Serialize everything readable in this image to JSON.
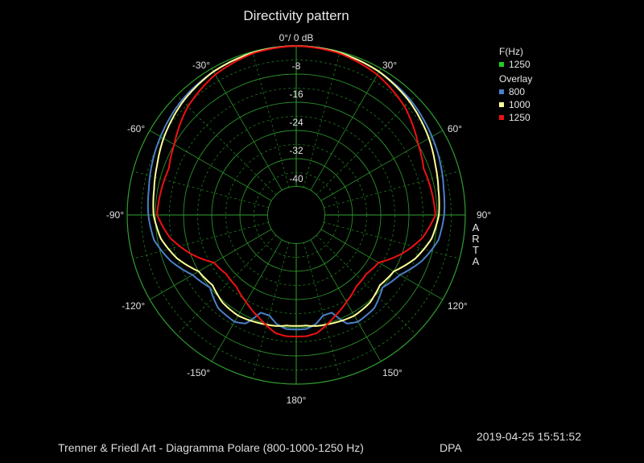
{
  "title": "Directivity pattern",
  "legend": {
    "freq_header": "F(Hz)",
    "freq_items": [
      {
        "label": "1250",
        "color": "#22cc22"
      }
    ],
    "overlay_header": "Overlay",
    "overlay_items": [
      {
        "label": "800",
        "color": "#4a7fc8"
      },
      {
        "label": "1000",
        "color": "#ffff99"
      },
      {
        "label": "1250",
        "color": "#ee1111"
      }
    ]
  },
  "side_label": "ARTA",
  "footer": "Trenner & Friedl Art - Diagramma Polare (800-1000-1250 Hz)",
  "brand": "DPA",
  "timestamp": "2019-04-25  15:51:52",
  "chart_data": {
    "type": "polar",
    "title": "Directivity pattern",
    "radial_unit": "dB",
    "radial_range": [
      -48,
      0
    ],
    "radial_ticks": [
      0,
      -8,
      -16,
      -24,
      -32,
      -40
    ],
    "radial_tick_labels": [
      "0°/ 0 dB",
      "-8",
      "-16",
      "-24",
      "-32",
      "-40"
    ],
    "angle_ticks": [
      0,
      30,
      60,
      90,
      120,
      150,
      180,
      -150,
      -120,
      -90,
      -60,
      -30
    ],
    "angle_tick_labels": [
      "0°/ 0 dB",
      "30°",
      "60°",
      "90°",
      "120°",
      "150°",
      "180°",
      "-150°",
      "-120°",
      "-90°",
      "-60°",
      "-30°"
    ],
    "grid": true,
    "legend_position": "top-right",
    "series": [
      {
        "name": "800",
        "color": "#4a7fc8",
        "angles": [
          0,
          15,
          30,
          45,
          60,
          70,
          80,
          90,
          100,
          110,
          120,
          130,
          140,
          150,
          155,
          160,
          165,
          170,
          175,
          180
        ],
        "values": [
          0,
          -0.3,
          -1,
          -2,
          -3.5,
          -4.5,
          -5.5,
          -6,
          -7,
          -10,
          -14,
          -16,
          -13.5,
          -13,
          -14,
          -18.5,
          -18.5,
          -16.5,
          -15.5,
          -15.5
        ]
      },
      {
        "name": "1000",
        "color": "#ffff99",
        "angles": [
          0,
          15,
          30,
          45,
          60,
          70,
          80,
          90,
          100,
          110,
          120,
          130,
          140,
          150,
          160,
          170,
          175,
          180
        ],
        "values": [
          0,
          -0.3,
          -1,
          -2.5,
          -4.5,
          -6,
          -7,
          -7.5,
          -9,
          -12,
          -16,
          -17,
          -15.5,
          -15,
          -15.5,
          -16,
          -16.5,
          -16.5
        ]
      },
      {
        "name": "1250",
        "color": "#ee1111",
        "angles": [
          0,
          15,
          30,
          45,
          60,
          70,
          80,
          90,
          100,
          110,
          120,
          130,
          140,
          150,
          160,
          170,
          175,
          180
        ],
        "values": [
          0,
          -0.5,
          -2,
          -4.5,
          -8,
          -9.5,
          -9,
          -8.5,
          -11.5,
          -16,
          -21,
          -22,
          -21.5,
          -19.5,
          -17,
          -14,
          -13.5,
          -13.5
        ]
      }
    ]
  }
}
